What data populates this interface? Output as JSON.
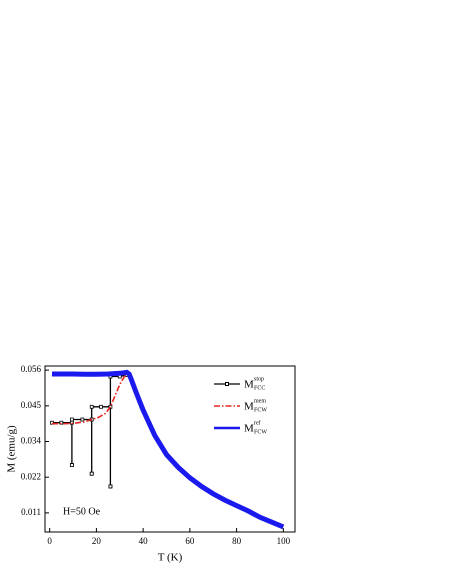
{
  "chart_data": {
    "type": "line",
    "xlabel": "T (K)",
    "ylabel": "M (emu/g)",
    "annotation": "H=50 Oe",
    "xlim": [
      -2,
      105
    ],
    "ylim": [
      0.0052,
      0.0573
    ],
    "xticks": [
      0,
      20,
      40,
      60,
      80,
      100
    ],
    "yticks": [
      {
        "value": 0.0112,
        "label": "0.011"
      },
      {
        "value": 0.0224,
        "label": "0.022"
      },
      {
        "value": 0.0336,
        "label": "0.034"
      },
      {
        "value": 0.0448,
        "label": "0.045"
      },
      {
        "value": 0.056,
        "label": "0.056"
      }
    ],
    "legend": "upper right",
    "series": [
      {
        "name": "M",
        "sup": "stop",
        "sub": "FCC",
        "color": "#000000",
        "style": "markers",
        "x": [
          1,
          5,
          9.5,
          9.5,
          9.5,
          9.5,
          14,
          18,
          18,
          18,
          18,
          22,
          26,
          26,
          26,
          26,
          30,
          33
        ],
        "values": [
          0.0395,
          0.0395,
          0.0395,
          0.0262,
          0.0262,
          0.0405,
          0.0405,
          0.0405,
          0.0235,
          0.0235,
          0.0445,
          0.0445,
          0.0445,
          0.0195,
          0.0195,
          0.054,
          0.054,
          0.0545
        ]
      },
      {
        "name": "M",
        "sup": "mem",
        "sub": "FCW",
        "color": "#e8231c",
        "style": "dashdot",
        "x": [
          1,
          5,
          10,
          15,
          18,
          21,
          24,
          26,
          28,
          30,
          32,
          33
        ],
        "values": [
          0.0392,
          0.0392,
          0.0393,
          0.0398,
          0.0405,
          0.0412,
          0.0425,
          0.0445,
          0.048,
          0.0515,
          0.054,
          0.0548
        ]
      },
      {
        "name": "M",
        "sup": "ref",
        "sub": "FCW",
        "color": "#1a1aee",
        "style": "thick",
        "x": [
          1,
          5,
          10,
          15,
          20,
          25,
          30,
          32,
          33,
          34,
          35,
          37,
          40,
          45,
          50,
          55,
          60,
          65,
          70,
          75,
          80,
          85,
          90,
          95,
          100
        ],
        "values": [
          0.0548,
          0.0548,
          0.0548,
          0.0547,
          0.0547,
          0.0548,
          0.055,
          0.0552,
          0.0553,
          0.0548,
          0.053,
          0.049,
          0.0435,
          0.0355,
          0.0295,
          0.0255,
          0.0222,
          0.0195,
          0.0172,
          0.0152,
          0.0135,
          0.0118,
          0.0098,
          0.0083,
          0.0068
        ]
      }
    ]
  }
}
